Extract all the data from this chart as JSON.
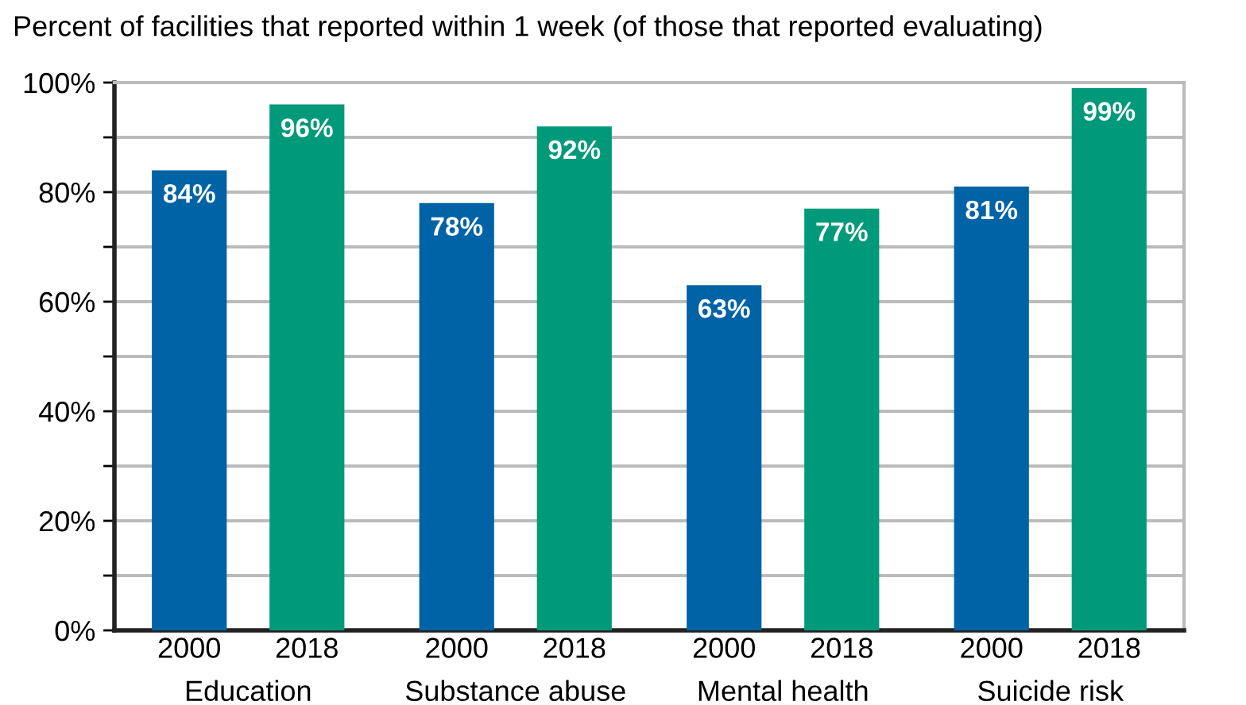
{
  "chart_data": {
    "type": "bar",
    "title": "Percent of facilities that reported within 1 week (of those that reported evaluating)",
    "categories": [
      "Education",
      "Substance abuse",
      "Mental health",
      "Suicide risk"
    ],
    "series": [
      {
        "name": "2000",
        "color": "#0063a5",
        "values": [
          84,
          78,
          63,
          81
        ],
        "value_labels": [
          "84%",
          "78%",
          "63%",
          "81%"
        ]
      },
      {
        "name": "2018",
        "color": "#009a7a",
        "values": [
          96,
          92,
          77,
          99
        ],
        "value_labels": [
          "96%",
          "92%",
          "77%",
          "99%"
        ]
      }
    ],
    "ylim": [
      0,
      100
    ],
    "yticks": [
      {
        "value": 0,
        "label": "0%"
      },
      {
        "value": 10,
        "label": null
      },
      {
        "value": 20,
        "label": "20%"
      },
      {
        "value": 30,
        "label": null
      },
      {
        "value": 40,
        "label": "40%"
      },
      {
        "value": 50,
        "label": null
      },
      {
        "value": 60,
        "label": "60%"
      },
      {
        "value": 70,
        "label": null
      },
      {
        "value": 80,
        "label": "80%"
      },
      {
        "value": 90,
        "label": null
      },
      {
        "value": 100,
        "label": "100%"
      }
    ],
    "grid": "y",
    "legend": false
  }
}
